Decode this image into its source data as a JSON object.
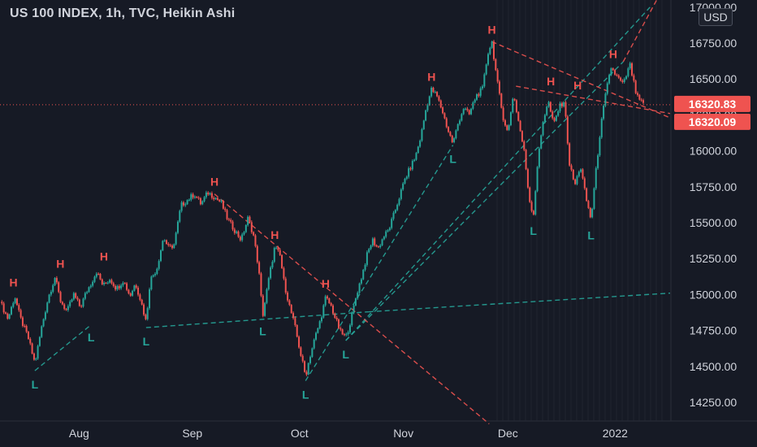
{
  "title": "US 100 INDEX, 1h, TVC, Heikin Ashi",
  "currency": "USD",
  "colors": {
    "background": "#161a25",
    "up": "#26a69a",
    "down": "#ef5350",
    "text": "#d1d4dc",
    "marker_high": "#ef5350",
    "marker_low": "#26a69a"
  },
  "chart_data": {
    "type": "candlestick",
    "style": "Heikin Ashi",
    "interval": "1h",
    "x_ticks": [
      "Aug",
      "Sep",
      "Oct",
      "Nov",
      "Dec",
      "2022"
    ],
    "y_ticks": [
      "14250.00",
      "14500.00",
      "14750.00",
      "15000.00",
      "15250.00",
      "15500.00",
      "15750.00",
      "16000.00",
      "16250.00",
      "16500.00",
      "16750.00",
      "17000.00"
    ],
    "ylim": [
      14120,
      17050
    ],
    "price_labels": [
      {
        "text": "16320.83",
        "color": "#ef5350"
      },
      {
        "text": "16320.09",
        "color": "#ef5350"
      }
    ],
    "last_price": 16320.83,
    "series": [
      {
        "t": 0,
        "v": 14950
      },
      {
        "t": 0.012,
        "v": 14830
      },
      {
        "t": 0.022,
        "v": 14990
      },
      {
        "t": 0.03,
        "v": 14840
      },
      {
        "t": 0.042,
        "v": 14700
      },
      {
        "t": 0.052,
        "v": 14520
      },
      {
        "t": 0.062,
        "v": 14770
      },
      {
        "t": 0.072,
        "v": 14980
      },
      {
        "t": 0.082,
        "v": 15120
      },
      {
        "t": 0.09,
        "v": 14960
      },
      {
        "t": 0.1,
        "v": 14880
      },
      {
        "t": 0.11,
        "v": 15000
      },
      {
        "t": 0.12,
        "v": 14910
      },
      {
        "t": 0.128,
        "v": 15010
      },
      {
        "t": 0.136,
        "v": 15080
      },
      {
        "t": 0.144,
        "v": 15160
      },
      {
        "t": 0.154,
        "v": 15060
      },
      {
        "t": 0.164,
        "v": 15110
      },
      {
        "t": 0.174,
        "v": 15040
      },
      {
        "t": 0.184,
        "v": 15100
      },
      {
        "t": 0.194,
        "v": 14990
      },
      {
        "t": 0.202,
        "v": 15080
      },
      {
        "t": 0.21,
        "v": 14960
      },
      {
        "t": 0.218,
        "v": 14810
      },
      {
        "t": 0.224,
        "v": 15100
      },
      {
        "t": 0.234,
        "v": 15180
      },
      {
        "t": 0.244,
        "v": 15400
      },
      {
        "t": 0.252,
        "v": 15320
      },
      {
        "t": 0.26,
        "v": 15350
      },
      {
        "t": 0.27,
        "v": 15620
      },
      {
        "t": 0.28,
        "v": 15660
      },
      {
        "t": 0.29,
        "v": 15700
      },
      {
        "t": 0.3,
        "v": 15630
      },
      {
        "t": 0.31,
        "v": 15710
      },
      {
        "t": 0.32,
        "v": 15680
      },
      {
        "t": 0.33,
        "v": 15640
      },
      {
        "t": 0.34,
        "v": 15520
      },
      {
        "t": 0.35,
        "v": 15450
      },
      {
        "t": 0.36,
        "v": 15380
      },
      {
        "t": 0.37,
        "v": 15530
      },
      {
        "t": 0.378,
        "v": 15420
      },
      {
        "t": 0.386,
        "v": 15180
      },
      {
        "t": 0.392,
        "v": 14850
      },
      {
        "t": 0.4,
        "v": 15080
      },
      {
        "t": 0.41,
        "v": 15330
      },
      {
        "t": 0.418,
        "v": 15270
      },
      {
        "t": 0.424,
        "v": 15080
      },
      {
        "t": 0.432,
        "v": 14920
      },
      {
        "t": 0.44,
        "v": 14780
      },
      {
        "t": 0.448,
        "v": 14600
      },
      {
        "t": 0.456,
        "v": 14430
      },
      {
        "t": 0.462,
        "v": 14560
      },
      {
        "t": 0.47,
        "v": 14700
      },
      {
        "t": 0.478,
        "v": 14820
      },
      {
        "t": 0.486,
        "v": 14980
      },
      {
        "t": 0.494,
        "v": 14920
      },
      {
        "t": 0.5,
        "v": 14840
      },
      {
        "t": 0.508,
        "v": 14740
      },
      {
        "t": 0.516,
        "v": 14700
      },
      {
        "t": 0.524,
        "v": 14830
      },
      {
        "t": 0.532,
        "v": 15000
      },
      {
        "t": 0.54,
        "v": 15130
      },
      {
        "t": 0.548,
        "v": 15280
      },
      {
        "t": 0.556,
        "v": 15380
      },
      {
        "t": 0.564,
        "v": 15320
      },
      {
        "t": 0.572,
        "v": 15400
      },
      {
        "t": 0.58,
        "v": 15450
      },
      {
        "t": 0.588,
        "v": 15560
      },
      {
        "t": 0.596,
        "v": 15680
      },
      {
        "t": 0.604,
        "v": 15800
      },
      {
        "t": 0.612,
        "v": 15880
      },
      {
        "t": 0.62,
        "v": 15960
      },
      {
        "t": 0.628,
        "v": 16100
      },
      {
        "t": 0.636,
        "v": 16300
      },
      {
        "t": 0.644,
        "v": 16430
      },
      {
        "t": 0.652,
        "v": 16380
      },
      {
        "t": 0.66,
        "v": 16280
      },
      {
        "t": 0.668,
        "v": 16150
      },
      {
        "t": 0.676,
        "v": 16050
      },
      {
        "t": 0.684,
        "v": 16200
      },
      {
        "t": 0.692,
        "v": 16300
      },
      {
        "t": 0.7,
        "v": 16250
      },
      {
        "t": 0.71,
        "v": 16380
      },
      {
        "t": 0.72,
        "v": 16430
      },
      {
        "t": 0.728,
        "v": 16680
      },
      {
        "t": 0.734,
        "v": 16760
      },
      {
        "t": 0.742,
        "v": 16480
      },
      {
        "t": 0.75,
        "v": 16250
      },
      {
        "t": 0.758,
        "v": 16120
      },
      {
        "t": 0.766,
        "v": 16400
      },
      {
        "t": 0.774,
        "v": 16200
      },
      {
        "t": 0.782,
        "v": 16000
      },
      {
        "t": 0.79,
        "v": 15660
      },
      {
        "t": 0.796,
        "v": 15550
      },
      {
        "t": 0.802,
        "v": 15900
      },
      {
        "t": 0.81,
        "v": 16200
      },
      {
        "t": 0.818,
        "v": 16350
      },
      {
        "t": 0.826,
        "v": 16180
      },
      {
        "t": 0.834,
        "v": 16300
      },
      {
        "t": 0.842,
        "v": 16350
      },
      {
        "t": 0.85,
        "v": 15900
      },
      {
        "t": 0.858,
        "v": 15760
      },
      {
        "t": 0.866,
        "v": 15900
      },
      {
        "t": 0.874,
        "v": 15680
      },
      {
        "t": 0.882,
        "v": 15520
      },
      {
        "t": 0.888,
        "v": 15800
      },
      {
        "t": 0.896,
        "v": 16150
      },
      {
        "t": 0.904,
        "v": 16400
      },
      {
        "t": 0.912,
        "v": 16580
      },
      {
        "t": 0.92,
        "v": 16520
      },
      {
        "t": 0.93,
        "v": 16460
      },
      {
        "t": 0.94,
        "v": 16600
      },
      {
        "t": 0.95,
        "v": 16380
      },
      {
        "t": 0.96,
        "v": 16320
      }
    ],
    "markers": [
      {
        "type": "H",
        "t": 0.02,
        "v": 15000
      },
      {
        "type": "L",
        "t": 0.052,
        "v": 14470
      },
      {
        "type": "H",
        "t": 0.09,
        "v": 15130
      },
      {
        "type": "L",
        "t": 0.136,
        "v": 14800
      },
      {
        "type": "H",
        "t": 0.155,
        "v": 15180
      },
      {
        "type": "L",
        "t": 0.218,
        "v": 14770
      },
      {
        "type": "H",
        "t": 0.32,
        "v": 15700
      },
      {
        "type": "L",
        "t": 0.392,
        "v": 14840
      },
      {
        "type": "H",
        "t": 0.41,
        "v": 15330
      },
      {
        "type": "L",
        "t": 0.456,
        "v": 14400
      },
      {
        "type": "H",
        "t": 0.486,
        "v": 14990
      },
      {
        "type": "L",
        "t": 0.516,
        "v": 14680
      },
      {
        "type": "H",
        "t": 0.644,
        "v": 16430
      },
      {
        "type": "L",
        "t": 0.676,
        "v": 16040
      },
      {
        "type": "H",
        "t": 0.734,
        "v": 16760
      },
      {
        "type": "L",
        "t": 0.796,
        "v": 15540
      },
      {
        "type": "H",
        "t": 0.822,
        "v": 16400
      },
      {
        "type": "H",
        "t": 0.862,
        "v": 16370
      },
      {
        "type": "L",
        "t": 0.882,
        "v": 15510
      },
      {
        "type": "H",
        "t": 0.915,
        "v": 16590
      }
    ],
    "trendlines": [
      {
        "color": "#26a69a",
        "from": {
          "t": 0.052,
          "v": 14470
        },
        "to": {
          "t": 0.136,
          "v": 14790
        }
      },
      {
        "color": "#26a69a",
        "from": {
          "t": 0.218,
          "v": 14770
        },
        "to": {
          "t": 0.55,
          "v": 14880
        }
      },
      {
        "color": "#26a69a",
        "from": {
          "t": 0.55,
          "v": 14880
        },
        "to": {
          "t": 1.0,
          "v": 15010
        }
      },
      {
        "color": "#26a69a",
        "from": {
          "t": 0.456,
          "v": 14400
        },
        "to": {
          "t": 0.676,
          "v": 16040
        }
      },
      {
        "color": "#26a69a",
        "from": {
          "t": 0.516,
          "v": 14680
        },
        "to": {
          "t": 0.97,
          "v": 17000
        }
      },
      {
        "color": "#26a69a",
        "from": {
          "t": 0.516,
          "v": 14680
        },
        "to": {
          "t": 0.93,
          "v": 16620
        }
      },
      {
        "color": "#ef5350",
        "from": {
          "t": 0.32,
          "v": 15700
        },
        "to": {
          "t": 0.73,
          "v": 14100
        }
      },
      {
        "color": "#ef5350",
        "from": {
          "t": 0.734,
          "v": 16760
        },
        "to": {
          "t": 1.0,
          "v": 16230
        }
      },
      {
        "color": "#ef5350",
        "from": {
          "t": 0.77,
          "v": 16450
        },
        "to": {
          "t": 1.0,
          "v": 16260
        }
      },
      {
        "color": "#ef5350",
        "from": {
          "t": 0.93,
          "v": 16620
        },
        "to": {
          "t": 0.98,
          "v": 17050
        }
      }
    ]
  }
}
